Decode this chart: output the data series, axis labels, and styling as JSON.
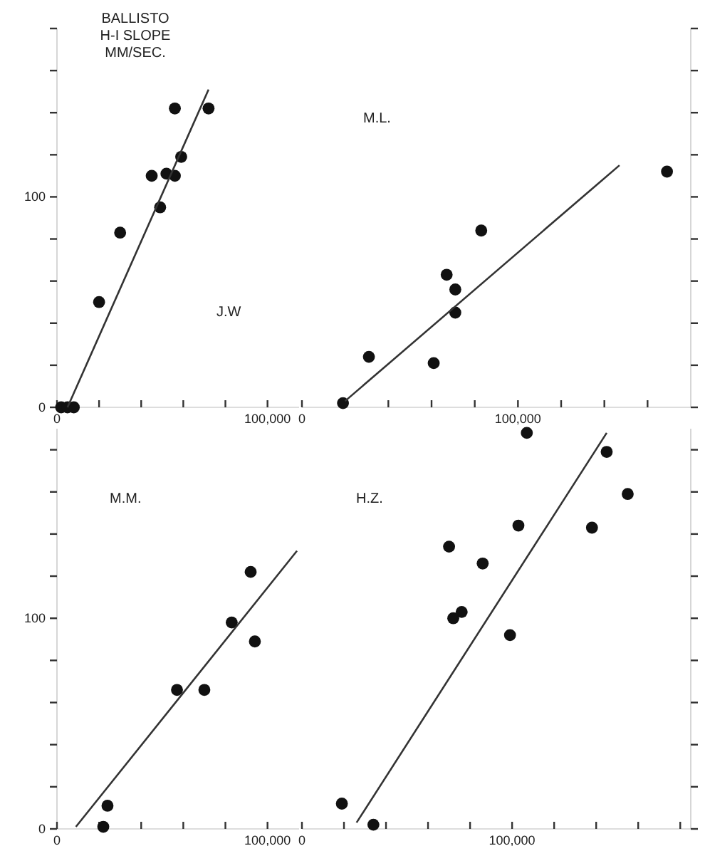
{
  "chart_data": [
    {
      "type": "scatter",
      "ylabel": "BALLISTO\nH-I SLOPE\nMM/SEC.",
      "annotations": [
        "J.W"
      ],
      "xlim": [
        0,
        115000
      ],
      "ylim": [
        0,
        180
      ],
      "xticks": [
        {
          "value": 0,
          "label": "0"
        },
        {
          "value": 20000,
          "label": null
        },
        {
          "value": 40000,
          "label": null
        },
        {
          "value": 60000,
          "label": null
        },
        {
          "value": 80000,
          "label": null
        },
        {
          "value": 100000,
          "label": "100,000"
        }
      ],
      "yticks": [
        {
          "value": 0,
          "label": "0"
        },
        {
          "value": 20,
          "label": null
        },
        {
          "value": 40,
          "label": null
        },
        {
          "value": 60,
          "label": null
        },
        {
          "value": 80,
          "label": null
        },
        {
          "value": 100,
          "label": "100"
        },
        {
          "value": 120,
          "label": null
        },
        {
          "value": 140,
          "label": null
        },
        {
          "value": 160,
          "label": null
        },
        {
          "value": 180,
          "label": null
        }
      ],
      "series": [
        {
          "marker": "circle",
          "color": "#111111",
          "x": [
            56000,
            72000,
            59000,
            45000,
            52000,
            56000,
            49000,
            30000,
            20000,
            2000,
            5000,
            8000
          ],
          "values": [
            142,
            142,
            119,
            110,
            111,
            110,
            95,
            83,
            50,
            0,
            0,
            0
          ]
        },
        {
          "type": "line",
          "marker": "none",
          "color": "#333333",
          "x": [
            5000,
            72000
          ],
          "values": [
            0,
            151
          ]
        }
      ]
    },
    {
      "type": "scatter",
      "annotations": [
        "M.L."
      ],
      "tick_labels": "x",
      "xlim": [
        0,
        180000
      ],
      "ylim": [
        0,
        180
      ],
      "xticks": [
        {
          "value": 0,
          "label": "0"
        },
        {
          "value": 20000,
          "label": null
        },
        {
          "value": 40000,
          "label": null
        },
        {
          "value": 60000,
          "label": null
        },
        {
          "value": 80000,
          "label": null
        },
        {
          "value": 100000,
          "label": "100,000"
        },
        {
          "value": 120000,
          "label": null
        },
        {
          "value": 140000,
          "label": null
        },
        {
          "value": 160000,
          "label": null
        }
      ],
      "yticks": [
        {
          "value": 0,
          "label": null
        },
        {
          "value": 20,
          "label": null
        },
        {
          "value": 40,
          "label": null
        },
        {
          "value": 60,
          "label": null
        },
        {
          "value": 80,
          "label": null
        },
        {
          "value": 100,
          "label": null
        },
        {
          "value": 120,
          "label": null
        },
        {
          "value": 140,
          "label": null
        },
        {
          "value": 160,
          "label": null
        },
        {
          "value": 180,
          "label": null
        }
      ],
      "series": [
        {
          "marker": "circle",
          "color": "#111111",
          "x": [
            19000,
            31000,
            61000,
            71000,
            71000,
            67000,
            83000,
            169000
          ],
          "values": [
            2,
            24,
            21,
            45,
            56,
            63,
            84,
            112
          ]
        },
        {
          "type": "line",
          "marker": "none",
          "color": "#333333",
          "x": [
            20000,
            147000
          ],
          "values": [
            3,
            115
          ]
        }
      ]
    },
    {
      "type": "scatter",
      "annotations": [
        "M.M."
      ],
      "xlim": [
        0,
        115000
      ],
      "ylim": [
        0,
        190
      ],
      "xticks": [
        {
          "value": 0,
          "label": "0"
        },
        {
          "value": 20000,
          "label": null
        },
        {
          "value": 40000,
          "label": null
        },
        {
          "value": 60000,
          "label": null
        },
        {
          "value": 80000,
          "label": null
        },
        {
          "value": 100000,
          "label": "100,000"
        }
      ],
      "yticks": [
        {
          "value": 0,
          "label": "0"
        },
        {
          "value": 20,
          "label": null
        },
        {
          "value": 40,
          "label": null
        },
        {
          "value": 60,
          "label": null
        },
        {
          "value": 80,
          "label": null
        },
        {
          "value": 100,
          "label": "100"
        },
        {
          "value": 120,
          "label": null
        },
        {
          "value": 140,
          "label": null
        },
        {
          "value": 160,
          "label": null
        },
        {
          "value": 180,
          "label": null
        }
      ],
      "series": [
        {
          "marker": "circle",
          "color": "#111111",
          "x": [
            92000,
            83000,
            94000,
            57000,
            70000,
            24000,
            22000
          ],
          "values": [
            122,
            98,
            89,
            66,
            66,
            11,
            1
          ]
        },
        {
          "type": "line",
          "marker": "none",
          "color": "#333333",
          "x": [
            9000,
            114000
          ],
          "values": [
            1,
            132
          ]
        }
      ]
    },
    {
      "type": "scatter",
      "annotations": [
        "H.Z."
      ],
      "tick_labels": "x",
      "xlim": [
        0,
        185000
      ],
      "ylim": [
        0,
        190
      ],
      "xticks": [
        {
          "value": 0,
          "label": "0"
        },
        {
          "value": 20000,
          "label": null
        },
        {
          "value": 40000,
          "label": null
        },
        {
          "value": 60000,
          "label": null
        },
        {
          "value": 80000,
          "label": null
        },
        {
          "value": 100000,
          "label": "100,000"
        },
        {
          "value": 120000,
          "label": null
        },
        {
          "value": 140000,
          "label": null
        },
        {
          "value": 160000,
          "label": null
        },
        {
          "value": 180000,
          "label": null
        }
      ],
      "yticks": [
        {
          "value": 0,
          "label": null
        },
        {
          "value": 20,
          "label": null
        },
        {
          "value": 40,
          "label": null
        },
        {
          "value": 60,
          "label": null
        },
        {
          "value": 80,
          "label": null
        },
        {
          "value": 100,
          "label": null
        },
        {
          "value": 120,
          "label": null
        },
        {
          "value": 140,
          "label": null
        },
        {
          "value": 160,
          "label": null
        },
        {
          "value": 180,
          "label": null
        }
      ],
      "series": [
        {
          "marker": "circle",
          "color": "#111111",
          "x": [
            107000,
            145000,
            155000,
            103000,
            138000,
            70000,
            86000,
            76000,
            72000,
            99000,
            19000,
            34000
          ],
          "values": [
            188,
            179,
            159,
            144,
            143,
            134,
            126,
            103,
            100,
            92,
            12,
            2
          ]
        },
        {
          "type": "line",
          "marker": "none",
          "color": "#333333",
          "x": [
            26000,
            145000
          ],
          "values": [
            3,
            188
          ]
        }
      ]
    }
  ]
}
